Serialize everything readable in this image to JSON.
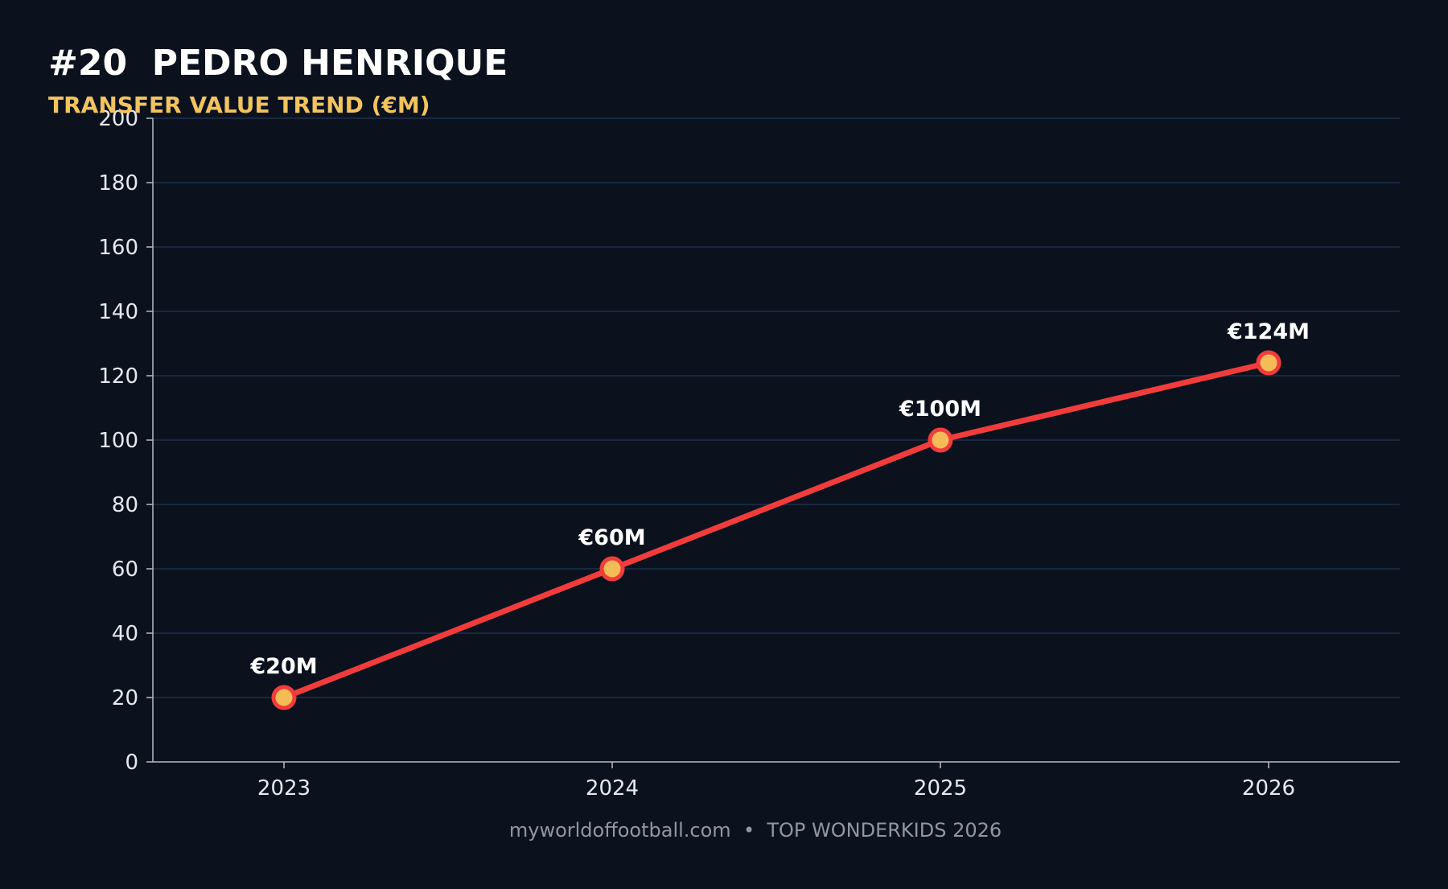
{
  "header": {
    "title": "#20  PEDRO HENRIQUE",
    "subtitle": "TRANSFER VALUE TREND (€M)"
  },
  "footer": {
    "text": "myworldoffootball.com  •  TOP WONDERKIDS 2026"
  },
  "colors": {
    "background": "#0b121e",
    "line": "#f23c3c",
    "marker_fill": "#f5bb57",
    "grid": "#1a2740",
    "axis": "#b5bcc8",
    "subtitle": "#f2c35e"
  },
  "chart_data": {
    "type": "line",
    "title": "#20  PEDRO HENRIQUE",
    "subtitle": "TRANSFER VALUE TREND (€M)",
    "xlabel": "",
    "ylabel": "",
    "categories": [
      "2023",
      "2024",
      "2025",
      "2026"
    ],
    "series": [
      {
        "values": [
          20,
          60,
          100,
          124
        ],
        "labels": [
          "€20M",
          "€60M",
          "€100M",
          "€124M"
        ]
      }
    ],
    "ylim": [
      0,
      200
    ],
    "yticks": [
      0,
      20,
      40,
      60,
      80,
      100,
      120,
      140,
      160,
      180,
      200
    ],
    "grid": "horizontal",
    "legend": "none"
  }
}
